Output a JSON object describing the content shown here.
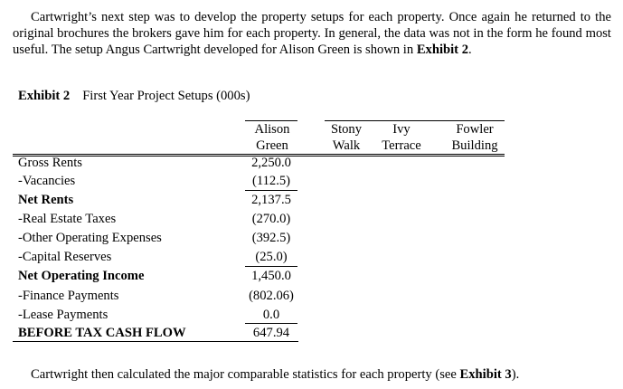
{
  "intro": {
    "text": "Cartwright’s next step was to develop the property setups for each property. Once again he returned to the original brochures the brokers gave him for each property. In general, the data was not in the form he found most useful. The setup Angus Cartwright developed for Alison Green is shown in ",
    "ref": "Exhibit 2",
    "end": "."
  },
  "exhibit": {
    "number": "Exhibit 2",
    "title": "First Year Project Setups (000s)"
  },
  "columns": [
    {
      "line1": "Alison",
      "line2": "Green"
    },
    {
      "line1": "Stony",
      "line2": "Walk"
    },
    {
      "line1": "Ivy",
      "line2": "Terrace"
    },
    {
      "line1": "Fowler",
      "line2": "Building"
    }
  ],
  "rows": [
    {
      "label": "Gross Rents",
      "value": "2,250.0",
      "bold": false
    },
    {
      "label": "-Vacancies",
      "value": "(112.5)",
      "bold": false
    },
    {
      "label": "Net Rents",
      "value": "2,137.5",
      "bold": true
    },
    {
      "label": "-Real Estate Taxes",
      "value": "(270.0)",
      "bold": false
    },
    {
      "label": "-Other Operating Expenses",
      "value": "(392.5)",
      "bold": false
    },
    {
      "label": "-Capital Reserves",
      "value": "(25.0)",
      "bold": false
    },
    {
      "label": "Net Operating Income",
      "value": "1,450.0",
      "bold": true
    },
    {
      "label": "-Finance Payments",
      "value": "(802.06)",
      "bold": false
    },
    {
      "label": "-Lease Payments",
      "value": "0.0",
      "bold": false
    },
    {
      "label": "BEFORE TAX CASH FLOW",
      "value": "647.94",
      "bold": true
    }
  ],
  "outro": {
    "text": "Cartwright then calculated the major comparable statistics for each property (see ",
    "ref": "Exhibit 3",
    "end": ")."
  }
}
